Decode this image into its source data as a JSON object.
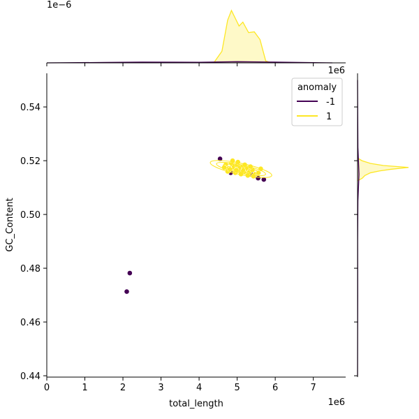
{
  "chart_data": {
    "type": "scatter",
    "title": "",
    "xlabel": "total_length",
    "ylabel": "GC_Content",
    "xlim": [
      0,
      7850000
    ],
    "ylim": [
      0.4395,
      0.5525
    ],
    "x_ticks": [
      0,
      1000000,
      2000000,
      3000000,
      4000000,
      5000000,
      6000000,
      7000000
    ],
    "x_tick_labels": [
      "0",
      "1",
      "2",
      "3",
      "4",
      "5",
      "6",
      "7"
    ],
    "x_offset_label": "1e6",
    "y_ticks": [
      0.44,
      0.46,
      0.48,
      0.5,
      0.52,
      0.54
    ],
    "y_tick_labels": [
      "0.44",
      "0.46",
      "0.48",
      "0.50",
      "0.52",
      "0.54"
    ],
    "top_marginal_offset_label": "1e−6",
    "right_marginal_offset_label": "1e6",
    "grid": false,
    "legend": {
      "title": "anomaly",
      "placement": "top-right",
      "entries": [
        {
          "label": "-1",
          "color": "#440154"
        },
        {
          "label": "1",
          "color": "#fde725"
        }
      ]
    },
    "series": [
      {
        "name": "-1",
        "color": "#440154",
        "points": [
          [
            2100000,
            0.4713
          ],
          [
            2180000,
            0.4782
          ],
          [
            4550000,
            0.5207
          ],
          [
            4830000,
            0.5155
          ],
          [
            5550000,
            0.5135
          ],
          [
            5700000,
            0.513
          ],
          [
            5380000,
            0.5148
          ]
        ]
      },
      {
        "name": "1",
        "color": "#fde725",
        "points": [
          [
            4700000,
            0.5185
          ],
          [
            4780000,
            0.5172
          ],
          [
            4850000,
            0.519
          ],
          [
            4920000,
            0.5178
          ],
          [
            5000000,
            0.5182
          ],
          [
            5060000,
            0.5168
          ],
          [
            5120000,
            0.5175
          ],
          [
            5180000,
            0.516
          ],
          [
            5250000,
            0.517
          ],
          [
            5320000,
            0.5158
          ],
          [
            5400000,
            0.5165
          ],
          [
            5480000,
            0.515
          ],
          [
            5560000,
            0.5155
          ],
          [
            4750000,
            0.516
          ],
          [
            4880000,
            0.52
          ],
          [
            4950000,
            0.5155
          ],
          [
            5020000,
            0.5195
          ],
          [
            5100000,
            0.515
          ],
          [
            5200000,
            0.5185
          ],
          [
            5280000,
            0.5145
          ],
          [
            5350000,
            0.5178
          ],
          [
            5430000,
            0.5142
          ],
          [
            4660000,
            0.5175
          ],
          [
            4810000,
            0.5168
          ],
          [
            5150000,
            0.5165
          ],
          [
            5620000,
            0.517
          ],
          [
            5050000,
            0.5172
          ],
          [
            4980000,
            0.5165
          ]
        ]
      }
    ],
    "marginal_x": {
      "series": [
        {
          "name": "1",
          "color": "#fde725",
          "x": [
            4200000,
            4400000,
            4600000,
            4750000,
            4850000,
            4950000,
            5050000,
            5150000,
            5300000,
            5450000,
            5600000,
            5750000,
            5900000
          ],
          "density": [
            0.0,
            0.02,
            0.3,
            1.1,
            1.35,
            1.15,
            0.95,
            1.05,
            0.78,
            0.8,
            0.6,
            0.05,
            0.0
          ]
        },
        {
          "name": "-1",
          "color": "#440154",
          "x": [
            0,
            1500000,
            2500000,
            4000000,
            5000000,
            6000000,
            7500000
          ],
          "density": [
            0.0,
            0.01,
            0.02,
            0.015,
            0.03,
            0.02,
            0.0
          ]
        }
      ]
    },
    "marginal_y": {
      "series": [
        {
          "name": "1",
          "color": "#fde725",
          "y": [
            0.5125,
            0.5135,
            0.5145,
            0.5155,
            0.5162,
            0.5168,
            0.5175,
            0.5182,
            0.519,
            0.52,
            0.521
          ],
          "density": [
            0.0,
            0.13,
            0.2,
            0.35,
            0.6,
            0.9,
            1.38,
            0.7,
            0.35,
            0.12,
            0.0
          ]
        },
        {
          "name": "-1",
          "color": "#440154",
          "y": [
            0.44,
            0.47,
            0.49,
            0.505,
            0.515,
            0.525,
            0.55
          ],
          "density": [
            0.0,
            0.005,
            0.003,
            0.01,
            0.04,
            0.01,
            0.0
          ]
        }
      ]
    }
  }
}
